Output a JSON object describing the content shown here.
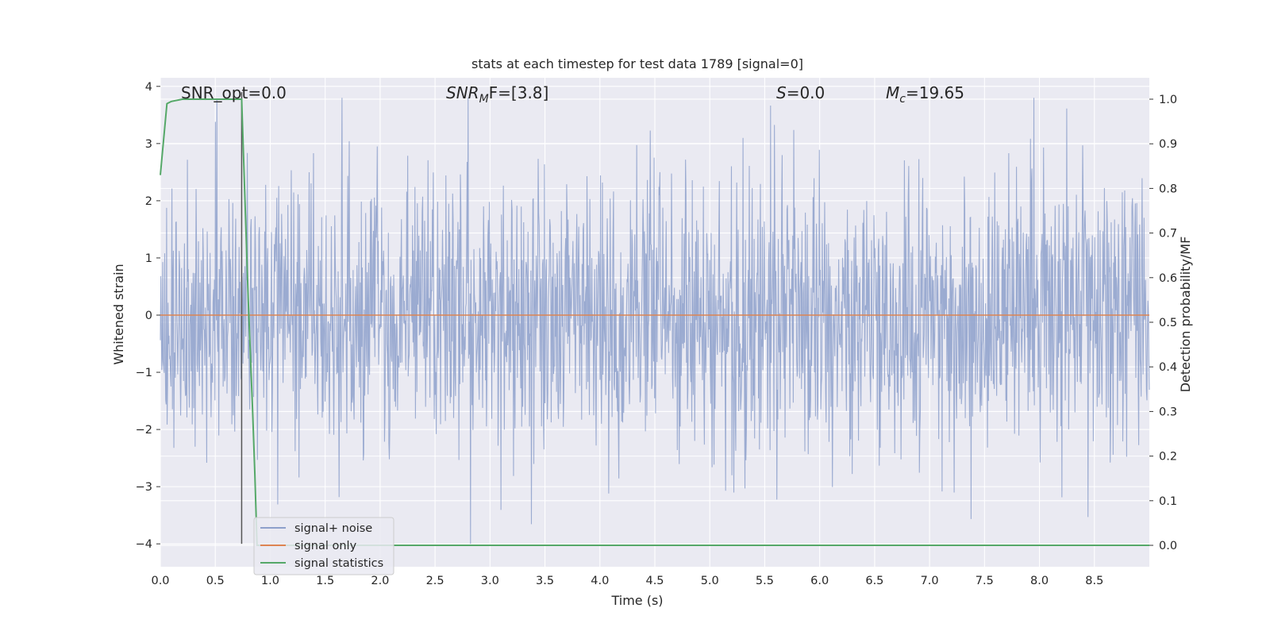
{
  "chart_data": {
    "type": "line",
    "title": "stats at each timestep for test data 1789 [signal=0]",
    "xlabel": "Time (s)",
    "ylabel": "Whitened strain",
    "y2label": "Detection probability/MF",
    "xlim": [
      0.0,
      9.0
    ],
    "ylim": [
      -4.4,
      4.15
    ],
    "y2lim": [
      -0.048,
      1.048
    ],
    "grid": true,
    "legend_position": "lower-left",
    "x_ticks": [
      "0.0",
      "0.5",
      "1.0",
      "1.5",
      "2.0",
      "2.5",
      "3.0",
      "3.5",
      "4.0",
      "4.5",
      "5.0",
      "5.5",
      "6.0",
      "6.5",
      "7.0",
      "7.5",
      "8.0",
      "8.5"
    ],
    "y_ticks": [
      "4",
      "3",
      "2",
      "1",
      "0",
      "−1",
      "−2",
      "−3",
      "−4"
    ],
    "y2_ticks": [
      "1.0",
      "0.9",
      "0.8",
      "0.7",
      "0.6",
      "0.5",
      "0.4",
      "0.3",
      "0.2",
      "0.1",
      "0.0"
    ],
    "annotations": {
      "snr_opt": "SNR_opt=0.0",
      "snr_mf_base": "SNR",
      "snr_mf_sub": "M",
      "snr_mf_rest": "F=[3.8]",
      "s": "S",
      "s_rest": "=0.0",
      "mc_base": "M",
      "mc_sub": "c",
      "mc_rest": "=19.65"
    },
    "series": [
      {
        "name": "signal+ noise",
        "color": "#8da0cb",
        "axis": "left",
        "style": "noise",
        "t_range": [
          0.0,
          9.0
        ],
        "samples": 2048,
        "typical_amplitude": 1.2,
        "peak_range": [
          -4.0,
          3.8
        ]
      },
      {
        "name": "signal only",
        "color": "#dd8452",
        "axis": "left",
        "x": [
          0.0,
          9.0
        ],
        "y": [
          0.0,
          0.0
        ]
      },
      {
        "name": "signal statistics",
        "color": "#55a868",
        "axis": "right",
        "x": [
          0.0,
          0.06,
          0.1,
          0.2,
          0.4,
          0.6,
          0.74,
          0.8,
          0.84,
          0.86,
          0.88,
          1.0,
          2.0,
          4.0,
          6.0,
          8.0,
          9.0
        ],
        "y": [
          0.83,
          0.99,
          0.995,
          1.0,
          1.0,
          1.0,
          1.0,
          0.55,
          0.3,
          0.16,
          0.0,
          0.0,
          0.0,
          0.0,
          0.0,
          0.0,
          0.0
        ]
      }
    ],
    "marker_line": {
      "x": 0.74,
      "y_from": -4.0,
      "y_to": 3.9,
      "color": "#555555"
    }
  }
}
